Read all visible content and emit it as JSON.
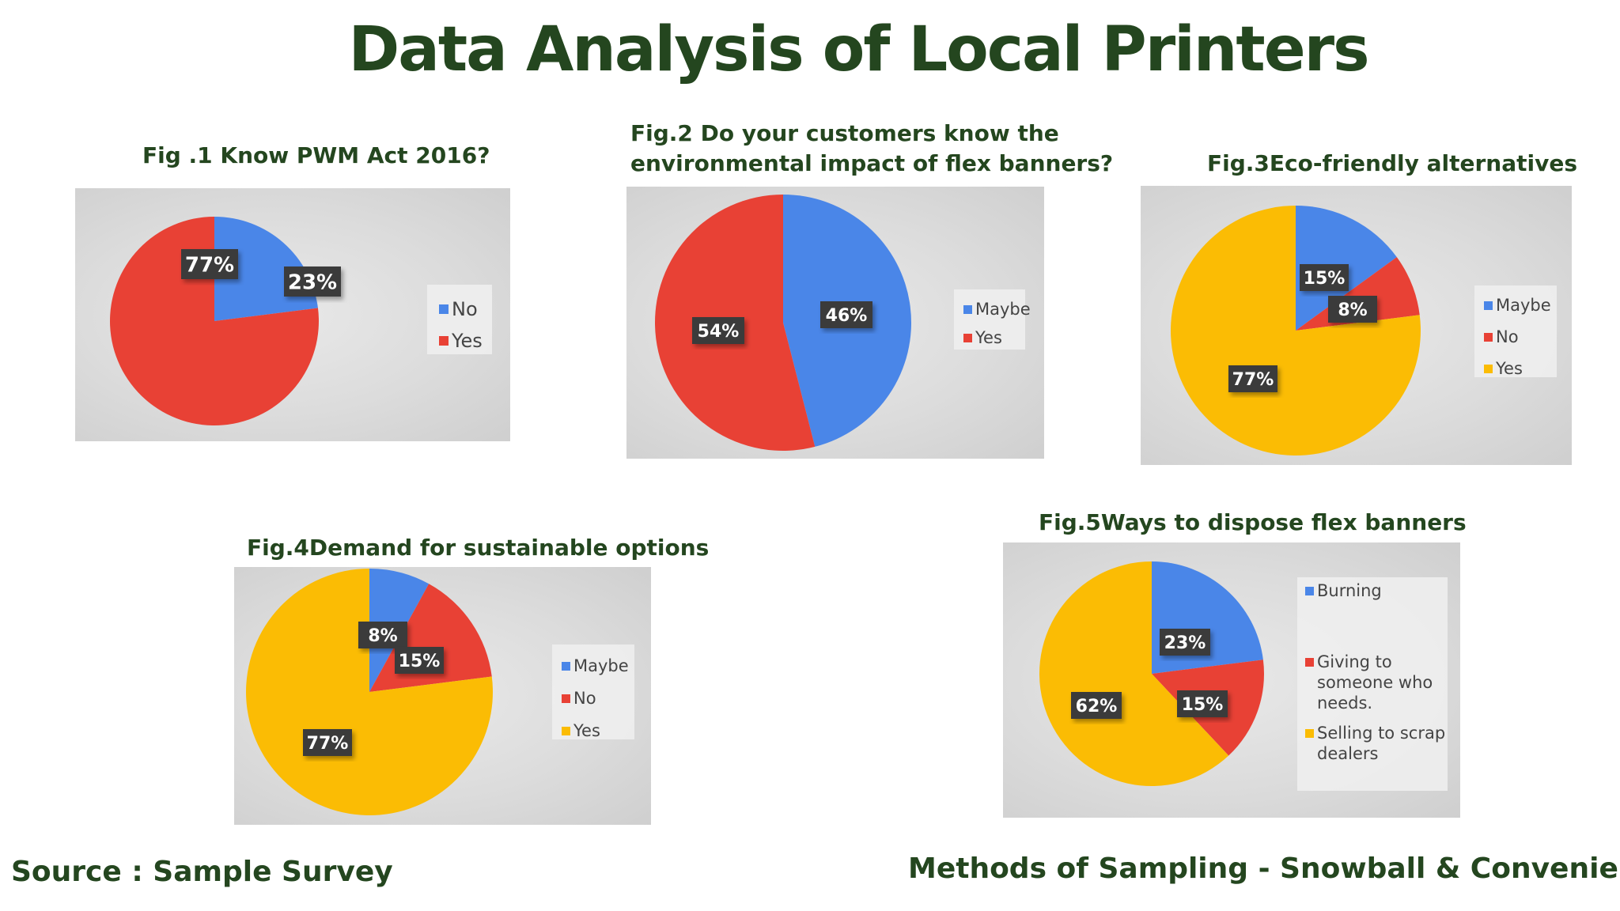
{
  "page": {
    "title": "Data Analysis  of Local Printers",
    "source": "Source : Sample Survey",
    "methods": "Methods of Sampling - Snowball & Convenience"
  },
  "colors": {
    "blue": "#4a86e8",
    "red": "#e84135",
    "yellow": "#fbbc04",
    "title_green": "#24461f"
  },
  "chart_data": [
    {
      "id": "fig1",
      "type": "pie",
      "title": "Fig .1 Know PWM Act 2016?",
      "slices": [
        {
          "label": "No",
          "value": 23,
          "display": "23%",
          "color": "#4a86e8"
        },
        {
          "label": "Yes",
          "value": 77,
          "display": "77%",
          "color": "#e84135"
        }
      ],
      "legend": [
        "No",
        "Yes"
      ],
      "legend_position": "right"
    },
    {
      "id": "fig2",
      "type": "pie",
      "title": "Fig.2 Do your customers know the\nenvironmental impact of flex banners?",
      "slices": [
        {
          "label": "Maybe",
          "value": 46,
          "display": "46%",
          "color": "#4a86e8"
        },
        {
          "label": "Yes",
          "value": 54,
          "display": "54%",
          "color": "#e84135"
        }
      ],
      "legend": [
        "Maybe",
        "Yes"
      ],
      "legend_position": "right"
    },
    {
      "id": "fig3",
      "type": "pie",
      "title": "Fig.3Eco-friendly alternatives",
      "slices": [
        {
          "label": "Maybe",
          "value": 15,
          "display": "15%",
          "color": "#4a86e8"
        },
        {
          "label": "No",
          "value": 8,
          "display": "8%",
          "color": "#e84135"
        },
        {
          "label": "Yes",
          "value": 77,
          "display": "77%",
          "color": "#fbbc04"
        }
      ],
      "legend": [
        "Maybe",
        "No",
        "Yes"
      ],
      "legend_position": "right"
    },
    {
      "id": "fig4",
      "type": "pie",
      "title": "Fig.4Demand for sustainable options",
      "slices": [
        {
          "label": "Maybe",
          "value": 8,
          "display": "8%",
          "color": "#4a86e8"
        },
        {
          "label": "No",
          "value": 15,
          "display": "15%",
          "color": "#e84135"
        },
        {
          "label": "Yes",
          "value": 77,
          "display": "77%",
          "color": "#fbbc04"
        }
      ],
      "legend": [
        "Maybe",
        "No",
        "Yes"
      ],
      "legend_position": "right"
    },
    {
      "id": "fig5",
      "type": "pie",
      "title": "Fig.5Ways to dispose flex banners",
      "slices": [
        {
          "label": "Burning",
          "value": 23,
          "display": "23%",
          "color": "#4a86e8"
        },
        {
          "label": "Giving to\nsomeone who\nneeds.",
          "value": 15,
          "display": "15%",
          "color": "#e84135"
        },
        {
          "label": "Selling to scrap\ndealers",
          "value": 62,
          "display": "62%",
          "color": "#fbbc04"
        }
      ],
      "legend": [
        "Burning",
        "Giving to\nsomeone who\nneeds.",
        "Selling to scrap\ndealers"
      ],
      "legend_position": "right"
    }
  ]
}
